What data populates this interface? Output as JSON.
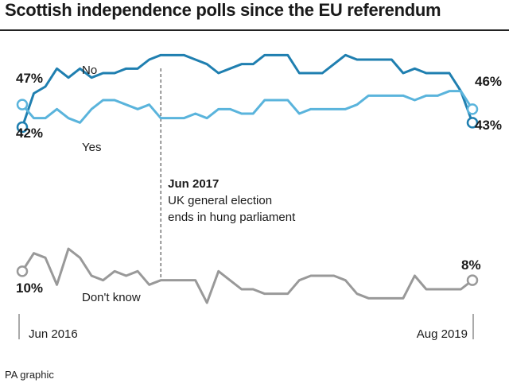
{
  "title": "Scottish independence polls since the EU referendum",
  "footer": "PA graphic",
  "chart_data": {
    "type": "line",
    "title": "Scottish independence polls since the EU referendum",
    "x_start_label": "Jun 2016",
    "x_end_label": "Aug 2019",
    "ylim": [
      0,
      60
    ],
    "series": [
      {
        "name": "No",
        "color": "#1f7fb0",
        "start_label": "42%",
        "end_label": "43%",
        "x": [
          0,
          1,
          2,
          3,
          4,
          5,
          6,
          7,
          8,
          9,
          10,
          11,
          12,
          13,
          14,
          15,
          16,
          17,
          18,
          19,
          20,
          21,
          22,
          23,
          24,
          25,
          26,
          27,
          28,
          29,
          30,
          31,
          32,
          33,
          34,
          35,
          36,
          37,
          38,
          39
        ],
        "values": [
          42,
          49.5,
          51,
          55,
          53,
          55,
          53,
          54,
          54,
          55,
          55,
          57,
          58,
          58,
          58,
          57,
          56,
          54,
          55,
          56,
          56,
          58,
          58,
          58,
          54,
          54,
          54,
          56,
          58,
          57,
          57,
          57,
          57,
          54,
          55,
          54,
          54,
          54,
          50,
          43
        ]
      },
      {
        "name": "Yes",
        "color": "#5ab4dc",
        "start_label": "47%",
        "end_label": "46%",
        "x": [
          0,
          1,
          2,
          3,
          4,
          5,
          6,
          7,
          8,
          9,
          10,
          11,
          12,
          13,
          14,
          15,
          16,
          17,
          18,
          19,
          20,
          21,
          22,
          23,
          24,
          25,
          26,
          27,
          28,
          29,
          30,
          31,
          32,
          33,
          34,
          35,
          36,
          37,
          38,
          39
        ],
        "values": [
          47,
          44,
          44,
          46,
          44,
          43,
          46,
          48,
          48,
          47,
          46,
          47,
          44,
          44,
          44,
          45,
          44,
          46,
          46,
          45,
          45,
          48,
          48,
          48,
          45,
          46,
          46,
          46,
          46,
          47,
          49,
          49,
          49,
          49,
          48,
          49,
          49,
          50,
          50,
          46
        ]
      },
      {
        "name": "Don't know",
        "color": "#999999",
        "start_label": "10%",
        "end_label": "8%",
        "x": [
          0,
          1,
          2,
          3,
          4,
          5,
          6,
          7,
          8,
          9,
          10,
          11,
          12,
          13,
          14,
          15,
          16,
          17,
          18,
          19,
          20,
          21,
          22,
          23,
          24,
          25,
          26,
          27,
          28,
          29,
          30,
          31,
          32,
          33,
          34,
          35,
          36,
          37,
          38,
          39
        ],
        "values": [
          10,
          14,
          13,
          7,
          15,
          13,
          9,
          8,
          10,
          9,
          10,
          7,
          8,
          8,
          8,
          8,
          3,
          10,
          8,
          6,
          6,
          5,
          5,
          5,
          8,
          9,
          9,
          9,
          8,
          5,
          4,
          4,
          4,
          4,
          9,
          6,
          6,
          6,
          6,
          8
        ]
      }
    ],
    "annotation": {
      "x": 12,
      "title": "Jun 2017",
      "lines": [
        "UK general election",
        "ends in hung parliament"
      ]
    }
  }
}
